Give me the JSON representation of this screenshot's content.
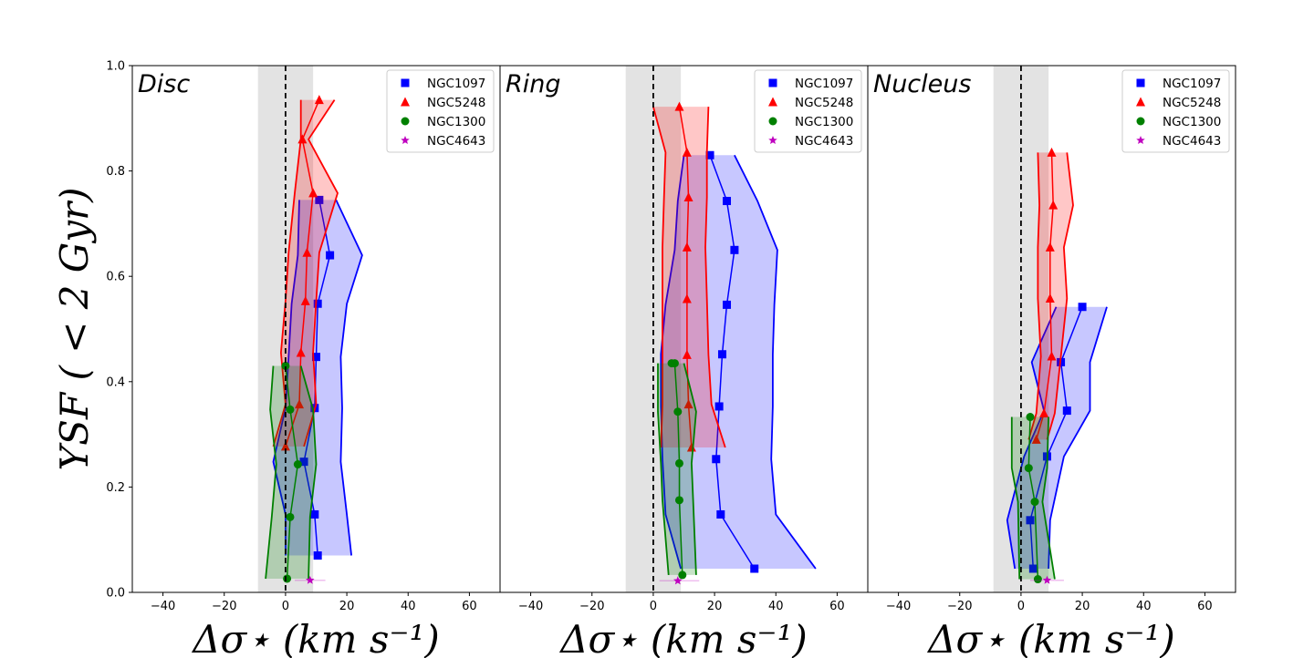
{
  "chart_data": {
    "type": "line",
    "ylabel": "YSF ( < 2 Gyr)",
    "xlabel": "Δσ⋆ (km s⁻¹)",
    "xlim": [
      -50,
      70
    ],
    "ylim": [
      0,
      1
    ],
    "xticks": [
      "−40",
      "−20",
      "0",
      "20",
      "40",
      "60"
    ],
    "yticks": [
      "0.0",
      "0.2",
      "0.4",
      "0.6",
      "0.8",
      "1.0"
    ],
    "grey_band": [
      -9,
      9
    ],
    "reference_line": 0,
    "colors": {
      "NGC1097": "#0000ff",
      "NGC5248": "#ff0000",
      "NGC1300": "#008000",
      "NGC4643": "#bf00bf"
    },
    "legend": [
      {
        "name": "NGC1097",
        "marker": "square"
      },
      {
        "name": "NGC5248",
        "marker": "triangle"
      },
      {
        "name": "NGC1300",
        "marker": "circle"
      },
      {
        "name": "NGC4643",
        "marker": "star"
      }
    ],
    "panels": [
      {
        "title": "Disc",
        "series": [
          {
            "name": "NGC1097",
            "marker": "square",
            "x": [
              10.5,
              9.5,
              6,
              9.5,
              10,
              10.5,
              14.5,
              11
            ],
            "y": [
              0.07,
              0.148,
              0.248,
              0.35,
              0.447,
              0.548,
              0.64,
              0.745
            ],
            "lo": [
              0,
              0,
              -4,
              0,
              1,
              2,
              4,
              4.5
            ],
            "hi": [
              21.5,
              20,
              18,
              18.5,
              18,
              20,
              25,
              16.5
            ]
          },
          {
            "name": "NGC5248",
            "marker": "triangle",
            "x": [
              0,
              4.5,
              5,
              6.5,
              7,
              9,
              5.5,
              11
            ],
            "y": [
              0.277,
              0.357,
              0.455,
              0.553,
              0.645,
              0.758,
              0.86,
              0.935
            ],
            "lo": [
              -4,
              0,
              -1.5,
              0,
              1,
              3,
              5,
              5
            ],
            "hi": [
              6,
              10,
              9,
              10,
              11,
              17,
              7.5,
              16
            ]
          },
          {
            "name": "NGC1300",
            "marker": "circle",
            "x": [
              0.5,
              1.5,
              4,
              1.5,
              0
            ],
            "y": [
              0.026,
              0.143,
              0.243,
              0.347,
              0.43
            ],
            "lo": [
              -6.5,
              -4.5,
              -3,
              -5,
              -4
            ],
            "hi": [
              7.5,
              8,
              10,
              9,
              5
            ]
          },
          {
            "name": "NGC4643",
            "marker": "star",
            "x": [
              8
            ],
            "y": [
              0.023
            ],
            "lo": [
              3
            ],
            "hi": [
              13
            ]
          }
        ]
      },
      {
        "title": "Ring",
        "series": [
          {
            "name": "NGC1097",
            "marker": "square",
            "x": [
              33,
              22,
              20.5,
              21.5,
              22.5,
              24,
              26.5,
              24,
              18.5
            ],
            "y": [
              0.045,
              0.148,
              0.253,
              0.353,
              0.452,
              0.546,
              0.65,
              0.743,
              0.83
            ],
            "lo": [
              9,
              4,
              3,
              2.5,
              2.5,
              4,
              7,
              8,
              10
            ],
            "hi": [
              53,
              40,
              38.5,
              39,
              39,
              39.5,
              40.5,
              34,
              26.5
            ]
          },
          {
            "name": "NGC5248",
            "marker": "triangle",
            "x": [
              12.5,
              11.5,
              11,
              11,
              11,
              11.5,
              11,
              8.5
            ],
            "y": [
              0.275,
              0.357,
              0.451,
              0.557,
              0.655,
              0.75,
              0.835,
              0.922
            ],
            "lo": [
              2.5,
              3,
              3,
              3,
              3,
              3.5,
              4,
              0
            ],
            "hi": [
              23.5,
              19,
              18,
              17.5,
              17,
              17.5,
              17.5,
              18
            ]
          },
          {
            "name": "NGC1300",
            "marker": "circle",
            "x": [
              9.5,
              8.5,
              8.5,
              8,
              7,
              6
            ],
            "y": [
              0.033,
              0.175,
              0.245,
              0.343,
              0.435,
              0.435
            ],
            "lo": [
              5,
              3,
              2.5,
              1.5,
              1.5,
              1.5
            ],
            "hi": [
              14,
              13,
              12.5,
              14,
              10,
              10
            ]
          },
          {
            "name": "NGC4643",
            "marker": "star",
            "x": [
              8
            ],
            "y": [
              0.022
            ],
            "lo": [
              2
            ],
            "hi": [
              15
            ]
          }
        ]
      },
      {
        "title": "Nucleus",
        "series": [
          {
            "name": "NGC1097",
            "marker": "square",
            "x": [
              4,
              3,
              8.5,
              15,
              13,
              20
            ],
            "y": [
              0.045,
              0.137,
              0.258,
              0.345,
              0.437,
              0.542
            ],
            "lo": [
              -2,
              -4.5,
              1,
              7.5,
              3.5,
              11.5
            ],
            "hi": [
              9,
              9.5,
              14,
              22.5,
              22.5,
              28
            ]
          },
          {
            "name": "NGC5248",
            "marker": "triangle",
            "x": [
              5,
              7.5,
              10,
              9.5,
              9.5,
              10.5,
              10
            ],
            "y": [
              0.29,
              0.34,
              0.448,
              0.558,
              0.655,
              0.735,
              0.835
            ],
            "lo": [
              2.5,
              5,
              6.5,
              5.5,
              5.5,
              6,
              5.5
            ],
            "hi": [
              8.5,
              11,
              13,
              15,
              14,
              17,
              15
            ]
          },
          {
            "name": "NGC1300",
            "marker": "circle",
            "x": [
              5.5,
              4.5,
              2.5,
              3
            ],
            "y": [
              0.025,
              0.172,
              0.236,
              0.333
            ],
            "lo": [
              -0.5,
              -1,
              -3,
              -3
            ],
            "hi": [
              11,
              7,
              8.5,
              9
            ]
          },
          {
            "name": "NGC4643",
            "marker": "star",
            "x": [
              8.5
            ],
            "y": [
              0.023
            ],
            "lo": [
              3
            ],
            "hi": [
              14
            ]
          }
        ]
      }
    ]
  }
}
